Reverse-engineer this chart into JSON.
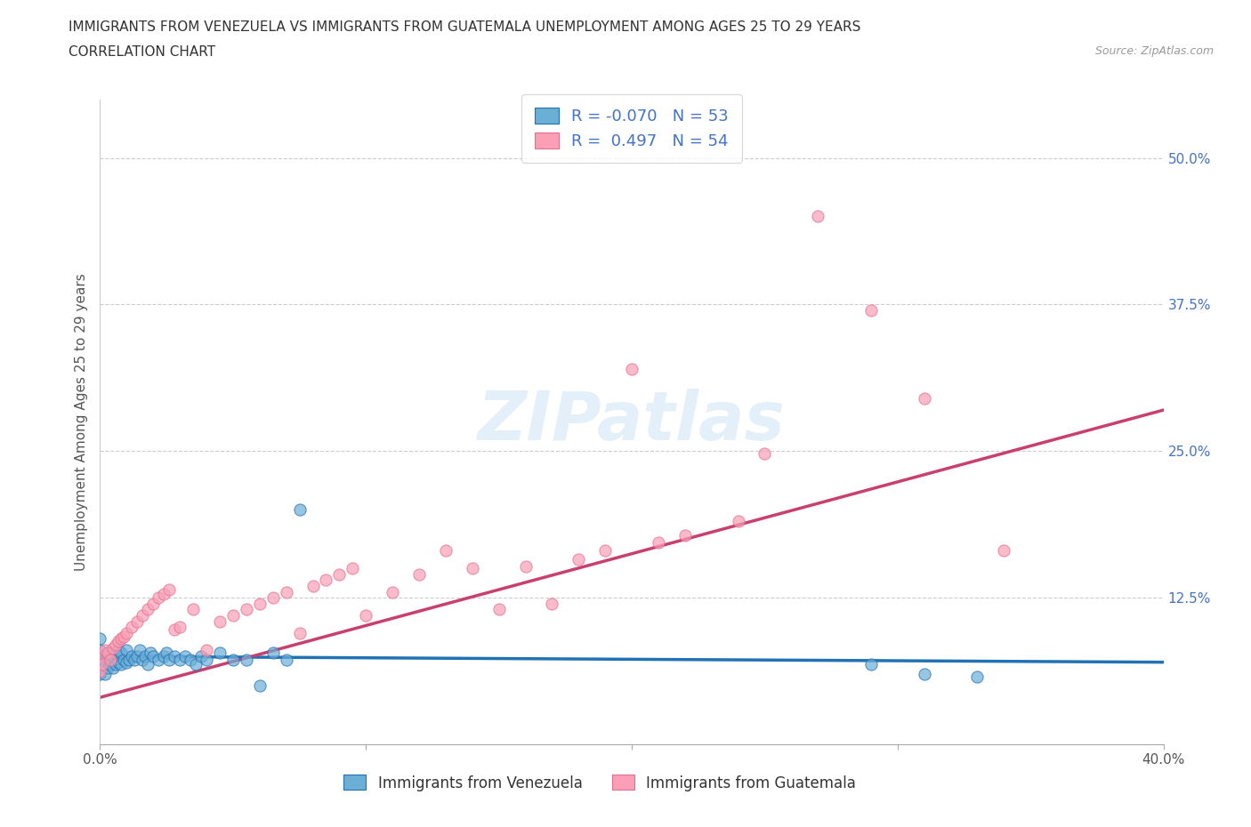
{
  "title_line1": "IMMIGRANTS FROM VENEZUELA VS IMMIGRANTS FROM GUATEMALA UNEMPLOYMENT AMONG AGES 25 TO 29 YEARS",
  "title_line2": "CORRELATION CHART",
  "source_text": "Source: ZipAtlas.com",
  "xlabel": "",
  "ylabel": "Unemployment Among Ages 25 to 29 years",
  "legend_label1": "Immigrants from Venezuela",
  "legend_label2": "Immigrants from Guatemala",
  "R1": -0.07,
  "N1": 53,
  "R2": 0.497,
  "N2": 54,
  "xlim": [
    0.0,
    0.4
  ],
  "ylim": [
    0.0,
    0.55
  ],
  "xticks": [
    0.0,
    0.1,
    0.2,
    0.3,
    0.4
  ],
  "yticks": [
    0.0,
    0.125,
    0.25,
    0.375,
    0.5
  ],
  "xtick_labels": [
    "0.0%",
    "",
    "",
    "",
    "40.0%"
  ],
  "ytick_labels": [
    "",
    "12.5%",
    "25.0%",
    "37.5%",
    "50.0%"
  ],
  "color_venezuela": "#6baed6",
  "color_guatemala": "#fa9fb5",
  "line_color_venezuela": "#2171b5",
  "line_color_guatemala": "#c94070",
  "background_color": "#ffffff",
  "watermark_text": "ZIPatlas",
  "venezuela_x": [
    0.0,
    0.0,
    0.0,
    0.0,
    0.0,
    0.002,
    0.002,
    0.003,
    0.003,
    0.004,
    0.004,
    0.005,
    0.005,
    0.006,
    0.006,
    0.007,
    0.007,
    0.008,
    0.008,
    0.009,
    0.01,
    0.01,
    0.011,
    0.012,
    0.013,
    0.014,
    0.015,
    0.016,
    0.017,
    0.018,
    0.019,
    0.02,
    0.022,
    0.024,
    0.025,
    0.026,
    0.028,
    0.03,
    0.032,
    0.034,
    0.036,
    0.038,
    0.04,
    0.045,
    0.05,
    0.055,
    0.06,
    0.065,
    0.07,
    0.075,
    0.29,
    0.31,
    0.33
  ],
  "venezuela_y": [
    0.06,
    0.07,
    0.075,
    0.08,
    0.09,
    0.06,
    0.07,
    0.065,
    0.075,
    0.068,
    0.078,
    0.065,
    0.075,
    0.068,
    0.078,
    0.07,
    0.08,
    0.068,
    0.078,
    0.072,
    0.07,
    0.08,
    0.072,
    0.075,
    0.072,
    0.075,
    0.08,
    0.072,
    0.075,
    0.068,
    0.078,
    0.075,
    0.072,
    0.075,
    0.078,
    0.072,
    0.075,
    0.072,
    0.075,
    0.072,
    0.068,
    0.075,
    0.072,
    0.078,
    0.072,
    0.072,
    0.05,
    0.078,
    0.072,
    0.2,
    0.068,
    0.06,
    0.058
  ],
  "guatemala_x": [
    0.0,
    0.0,
    0.001,
    0.002,
    0.003,
    0.004,
    0.005,
    0.006,
    0.007,
    0.008,
    0.009,
    0.01,
    0.012,
    0.014,
    0.016,
    0.018,
    0.02,
    0.022,
    0.024,
    0.026,
    0.028,
    0.03,
    0.035,
    0.04,
    0.045,
    0.05,
    0.055,
    0.06,
    0.065,
    0.07,
    0.075,
    0.08,
    0.085,
    0.09,
    0.095,
    0.1,
    0.11,
    0.12,
    0.13,
    0.14,
    0.15,
    0.16,
    0.17,
    0.18,
    0.19,
    0.2,
    0.21,
    0.22,
    0.24,
    0.25,
    0.27,
    0.29,
    0.31,
    0.34
  ],
  "guatemala_y": [
    0.062,
    0.075,
    0.068,
    0.08,
    0.078,
    0.072,
    0.082,
    0.085,
    0.088,
    0.09,
    0.092,
    0.095,
    0.1,
    0.105,
    0.11,
    0.115,
    0.12,
    0.125,
    0.128,
    0.132,
    0.098,
    0.1,
    0.115,
    0.08,
    0.105,
    0.11,
    0.115,
    0.12,
    0.125,
    0.13,
    0.095,
    0.135,
    0.14,
    0.145,
    0.15,
    0.11,
    0.13,
    0.145,
    0.165,
    0.15,
    0.115,
    0.152,
    0.12,
    0.158,
    0.165,
    0.32,
    0.172,
    0.178,
    0.19,
    0.248,
    0.45,
    0.37,
    0.295,
    0.165
  ]
}
